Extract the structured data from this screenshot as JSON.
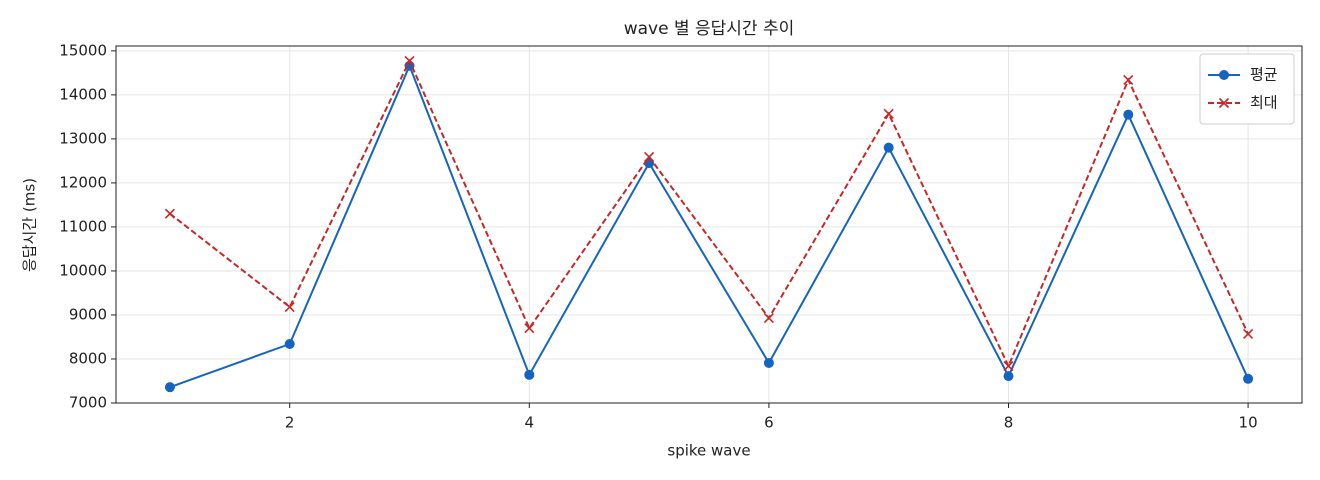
{
  "chart_data": {
    "type": "line",
    "title": "wave 별 응답시간 추이",
    "x_label": "spike wave",
    "y_label": "응답시간 (ms)",
    "x": [
      1,
      2,
      3,
      4,
      5,
      6,
      7,
      8,
      9,
      10
    ],
    "series": [
      {
        "name": "평균",
        "color": "#1565c0",
        "marker": "circle",
        "linestyle": "solid",
        "values": [
          7360,
          8340,
          14660,
          7640,
          12450,
          7910,
          12800,
          7610,
          13550,
          7550
        ]
      },
      {
        "name": "최대",
        "color": "#c62828",
        "marker": "cross",
        "linestyle": "dashed",
        "values": [
          11300,
          9180,
          14770,
          8700,
          12590,
          8930,
          13570,
          7840,
          14340,
          8570
        ]
      }
    ],
    "xlim": [
      0.55,
      10.45
    ],
    "ylim": [
      7000,
      15110
    ],
    "xticks": [
      2,
      4,
      6,
      8,
      10
    ],
    "yticks": [
      7000,
      8000,
      9000,
      10000,
      11000,
      12000,
      13000,
      14000,
      15000
    ],
    "grid": true,
    "legend": "upper right"
  }
}
